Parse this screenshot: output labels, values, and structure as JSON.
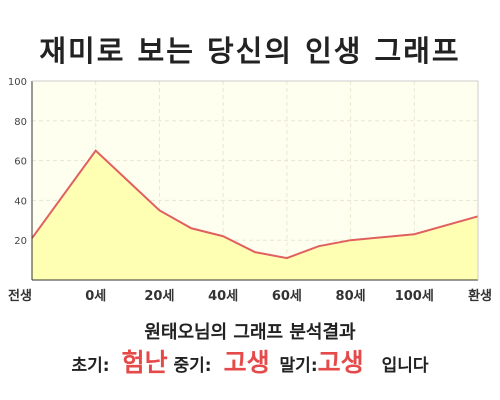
{
  "chart_data": {
    "type": "area",
    "title": "재미로 보는 당신의 인생 그래프",
    "categories": [
      "전생",
      "0세",
      "20세",
      "40세",
      "60세",
      "80세",
      "100세",
      "환생"
    ],
    "x": [
      -20,
      0,
      10,
      20,
      30,
      40,
      50,
      60,
      70,
      80,
      90,
      100,
      120
    ],
    "series": [
      {
        "values": [
          21,
          65,
          50,
          35,
          26,
          22,
          14,
          11,
          17,
          20,
          21.5,
          23,
          32
        ]
      }
    ],
    "xlabel": "",
    "ylabel": "",
    "ylim": [
      0,
      100
    ],
    "yticks": [
      20,
      40,
      60,
      80,
      100
    ],
    "grid": true,
    "colors": {
      "line": "#e06060",
      "fill": "#ffffb3",
      "plot_bg": "#fffff0"
    }
  },
  "result": {
    "summary": "원태오님의 그래프 분석결과",
    "early_label": "초기:",
    "early_value": "험난",
    "middle_label": "중기:",
    "middle_value": "고생",
    "late_label": "말기:",
    "late_value": "고생",
    "ending": "입니다"
  }
}
